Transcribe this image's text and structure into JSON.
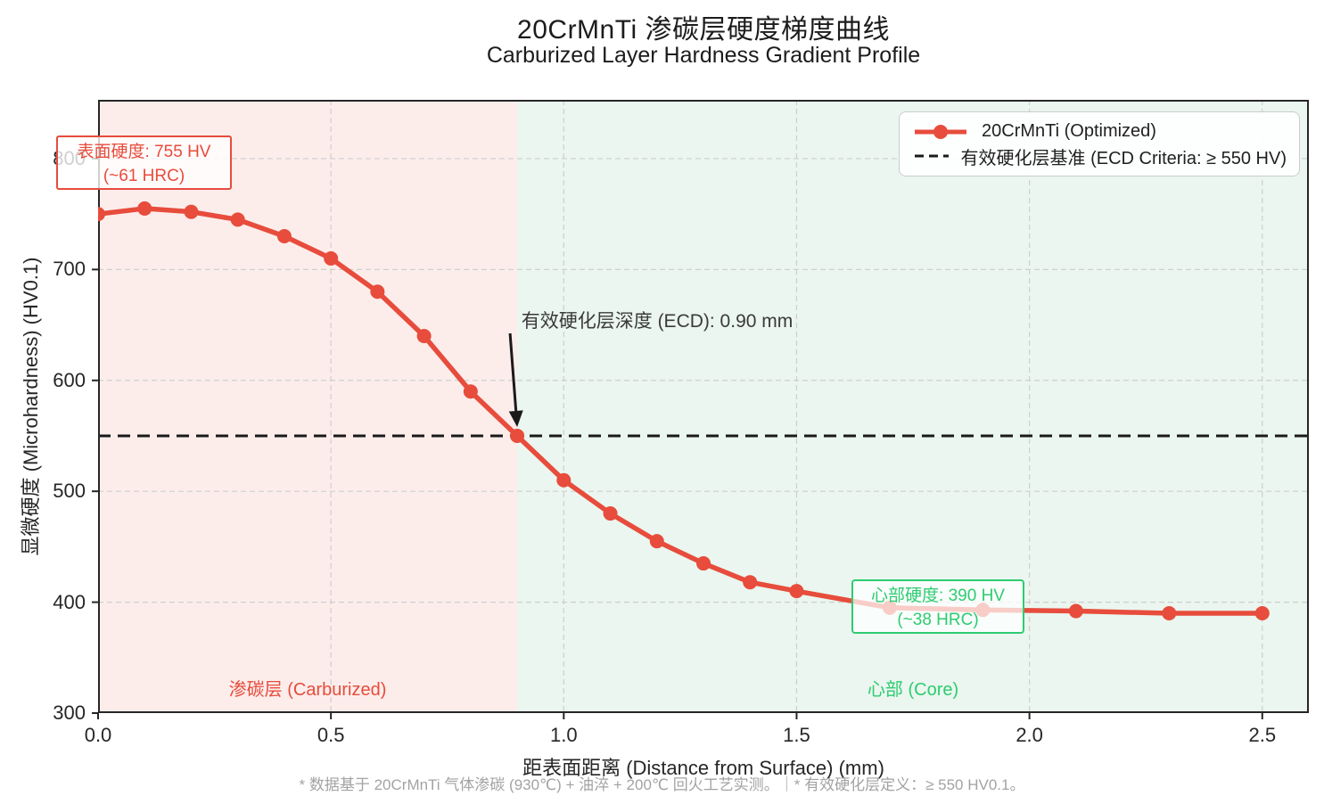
{
  "title": "20CrMnTi 渗碳层硬度梯度曲线",
  "subtitle": "Carburized Layer Hardness Gradient Profile",
  "footer": "* 数据基于 20CrMnTi 气体渗碳 (930℃) + 油淬 + 200℃ 回火工艺实测。｜* 有效硬化层定义：≥ 550 HV0.1。",
  "colors": {
    "red": "#e74c3c",
    "green": "#2ecc71",
    "grid": "#cfcfcf",
    "spine": "#262626",
    "ref_line": "#1a1a1a",
    "carburized_bg": "#fcedeb",
    "core_bg": "#eaf6ef",
    "muted_text": "#a3a3a3"
  },
  "chart_data": {
    "type": "line",
    "title": "20CrMnTi 渗碳层硬度梯度曲线",
    "subtitle": "Carburized Layer Hardness Gradient Profile",
    "xlabel": "距表面距离 (Distance from Surface) (mm)",
    "ylabel": "显微硬度 (Microhardness) (HV0.1)",
    "xlim": [
      0,
      2.6
    ],
    "ylim": [
      300,
      853
    ],
    "xticks": [
      0.0,
      0.5,
      1.0,
      1.5,
      2.0,
      2.5
    ],
    "xtick_labels": [
      "0.0",
      "0.5",
      "1.0",
      "1.5",
      "2.0",
      "2.5"
    ],
    "yticks": [
      300,
      400,
      500,
      600,
      700,
      800
    ],
    "ytick_labels": [
      "300",
      "400",
      "500",
      "600",
      "700",
      "800"
    ],
    "grid": true,
    "legend_position": "upper right",
    "series": [
      {
        "name": "20CrMnTi (Optimized)",
        "color": "#e74c3c",
        "marker": "circle",
        "x": [
          0.0,
          0.1,
          0.2,
          0.3,
          0.4,
          0.5,
          0.6,
          0.7,
          0.8,
          0.9,
          1.0,
          1.1,
          1.2,
          1.3,
          1.4,
          1.5,
          1.7,
          1.9,
          2.1,
          2.3,
          2.5
        ],
        "y": [
          750,
          755,
          752,
          745,
          730,
          710,
          680,
          640,
          590,
          550,
          510,
          480,
          455,
          435,
          418,
          410,
          395,
          393,
          392,
          390,
          390
        ]
      }
    ],
    "reference_line": {
      "label": "有效硬化层基准 (ECD Criteria: ≥ 550 HV)",
      "y": 550,
      "style": "dashed",
      "color": "#1a1a1a"
    },
    "regions": [
      {
        "label": "渗碳层 (Carburized)",
        "x_start": 0.0,
        "x_end": 0.9,
        "bg": "#fcedeb",
        "label_color": "#e74c3c"
      },
      {
        "label": "心部 (Core)",
        "x_start": 0.9,
        "x_end": 2.6,
        "bg": "#eaf6ef",
        "label_color": "#2ecc71"
      }
    ],
    "annotations": {
      "surface": {
        "line1": "表面硬度: 755 HV",
        "line2": "(~61 HRC)",
        "color": "#e74c3c"
      },
      "core": {
        "line1": "心部硬度: 390 HV",
        "line2": "(~38 HRC)",
        "color": "#2ecc71"
      },
      "ecd": {
        "text": "有效硬化层深度 (ECD): 0.90 mm",
        "target_x": 0.9,
        "target_y": 550
      }
    }
  }
}
